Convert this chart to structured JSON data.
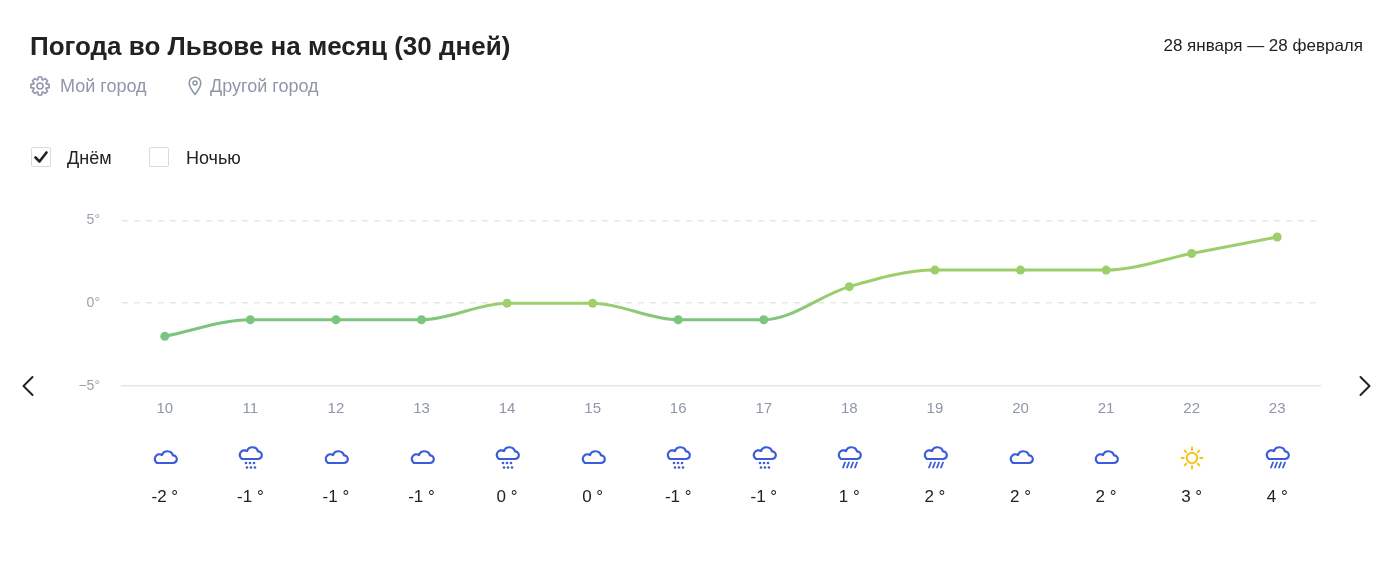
{
  "chart_data": {
    "type": "line",
    "title": "Погода во Львове на месяц (30 дней)",
    "subtitle": "28 января — 28 февраля",
    "annotations": [
      "Мой город",
      "Другой город",
      "Днём",
      "Ночью"
    ],
    "categories": [
      "10",
      "11",
      "12",
      "13",
      "14",
      "15",
      "16",
      "17",
      "18",
      "19",
      "20",
      "21",
      "22",
      "23"
    ],
    "values": [
      -2,
      -1,
      -1,
      -1,
      0,
      0,
      -1,
      -1,
      1,
      2,
      2,
      2,
      3,
      4
    ],
    "colors": [
      "#7cc47f",
      "#7cc47f",
      "#7cc47f",
      "#7cc47f",
      "#9fd06c",
      "#9fd06c",
      "#7cc47f",
      "#7cc47f",
      "#9ccf6a",
      "#9ccf6a",
      "#9ccf6a",
      "#9ccf6a",
      "#9ccf6a",
      "#9ccf6a"
    ],
    "value_labels": [
      "-2 °",
      "-1 °",
      "-1 °",
      "-1 °",
      "0 °",
      "0 °",
      "-1 °",
      "-1 °",
      "1 °",
      "2 °",
      "2 °",
      "2 °",
      "3 °",
      "4 °"
    ],
    "ylim": [
      -5,
      5
    ],
    "yticks": [
      {
        "value": 5,
        "label": "5°"
      },
      {
        "value": 0,
        "label": "0°"
      },
      {
        "value": -5,
        "label": "−5°"
      }
    ],
    "grid": "y",
    "marker": "circle",
    "line_style": "solid"
  }
}
